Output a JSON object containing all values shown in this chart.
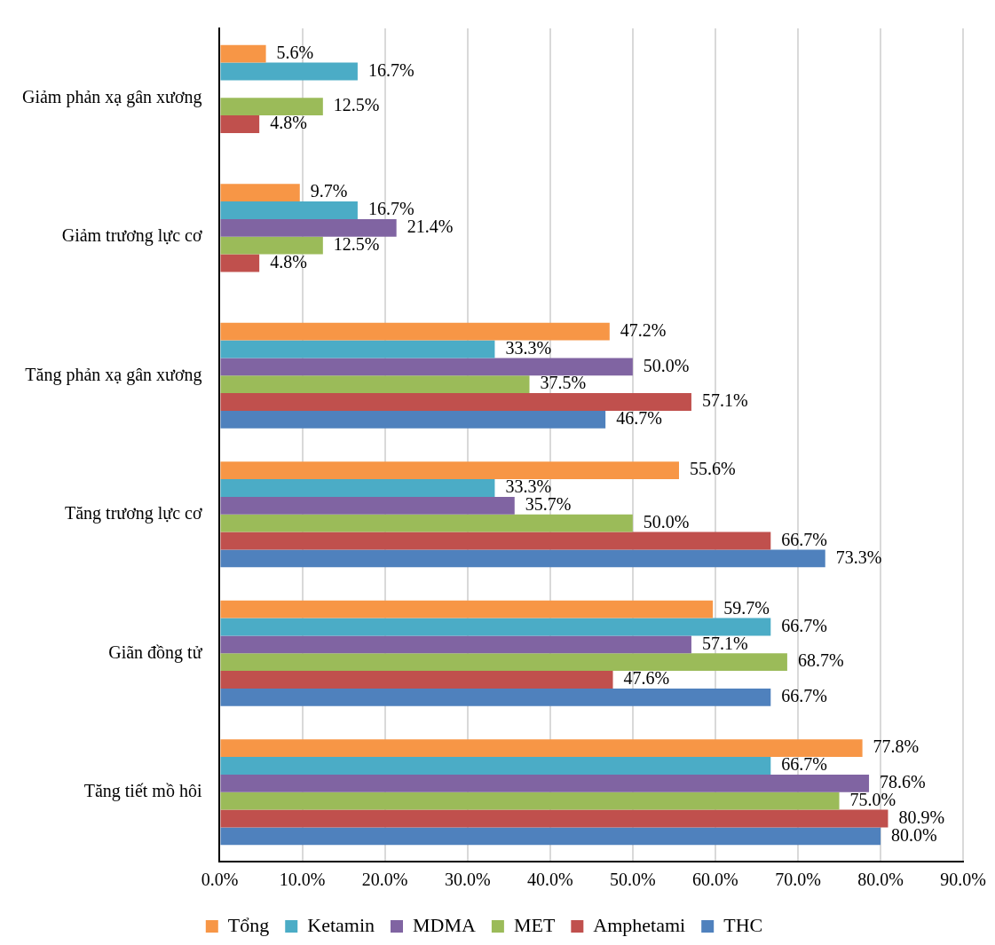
{
  "chart_data": {
    "type": "bar",
    "orientation": "horizontal",
    "categories": [
      "Giảm phản xạ gân xương",
      "Giảm trương lực cơ",
      "Tăng phản xạ gân xương",
      "Tăng trương lực cơ",
      "Giãn đồng tử",
      "Tăng tiết mồ hôi"
    ],
    "series": [
      {
        "name": "Tổng",
        "color": "#f79646",
        "values": [
          5.6,
          9.7,
          47.2,
          55.6,
          59.7,
          77.8
        ],
        "value_labels": [
          "5.6%",
          "9.7%",
          "47.2%",
          "55.6%",
          "59.7%",
          "77.8%"
        ]
      },
      {
        "name": "Ketamin",
        "color": "#4bacc6",
        "values": [
          16.7,
          16.7,
          33.3,
          33.3,
          66.7,
          66.7
        ],
        "value_labels": [
          "16.7%",
          "16.7%",
          "33.3%",
          "33.3%",
          "66.7%",
          "66.7%"
        ]
      },
      {
        "name": "MDMA",
        "color": "#8064a2",
        "values": [
          null,
          21.4,
          50.0,
          35.7,
          57.1,
          78.6
        ],
        "value_labels": [
          null,
          "21.4%",
          "50.0%",
          "35.7%",
          "57.1%",
          "78.6%"
        ]
      },
      {
        "name": "MET",
        "color": "#9bbb59",
        "values": [
          12.5,
          12.5,
          37.5,
          50.0,
          68.7,
          75.0
        ],
        "value_labels": [
          "12.5%",
          "12.5%",
          "37.5%",
          "50.0%",
          "68.7%",
          "75.0%"
        ]
      },
      {
        "name": "Amphetami",
        "color": "#c0504d",
        "values": [
          4.8,
          4.8,
          57.1,
          66.7,
          47.6,
          80.9
        ],
        "value_labels": [
          "4.8%",
          "4.8%",
          "57.1%",
          "66.7%",
          "47.6%",
          "80.9%"
        ]
      },
      {
        "name": "THC",
        "color": "#4f81bd",
        "values": [
          null,
          null,
          46.7,
          73.3,
          66.7,
          80.0
        ],
        "value_labels": [
          null,
          null,
          "46.7%",
          "73.3%",
          "66.7%",
          "80.0%"
        ]
      }
    ],
    "xlim": [
      0,
      90
    ],
    "xticks": [
      {
        "value": 0,
        "label": "0.0%"
      },
      {
        "value": 10,
        "label": "10.0%"
      },
      {
        "value": 20,
        "label": "20.0%"
      },
      {
        "value": 30,
        "label": "30.0%"
      },
      {
        "value": 40,
        "label": "40.0%"
      },
      {
        "value": 50,
        "label": "50.0%"
      },
      {
        "value": 60,
        "label": "60.0%"
      },
      {
        "value": 70,
        "label": "70.0%"
      },
      {
        "value": 80,
        "label": "80.0%"
      },
      {
        "value": 90,
        "label": "90.0%"
      }
    ],
    "grid": "x",
    "legend": "bottom"
  }
}
